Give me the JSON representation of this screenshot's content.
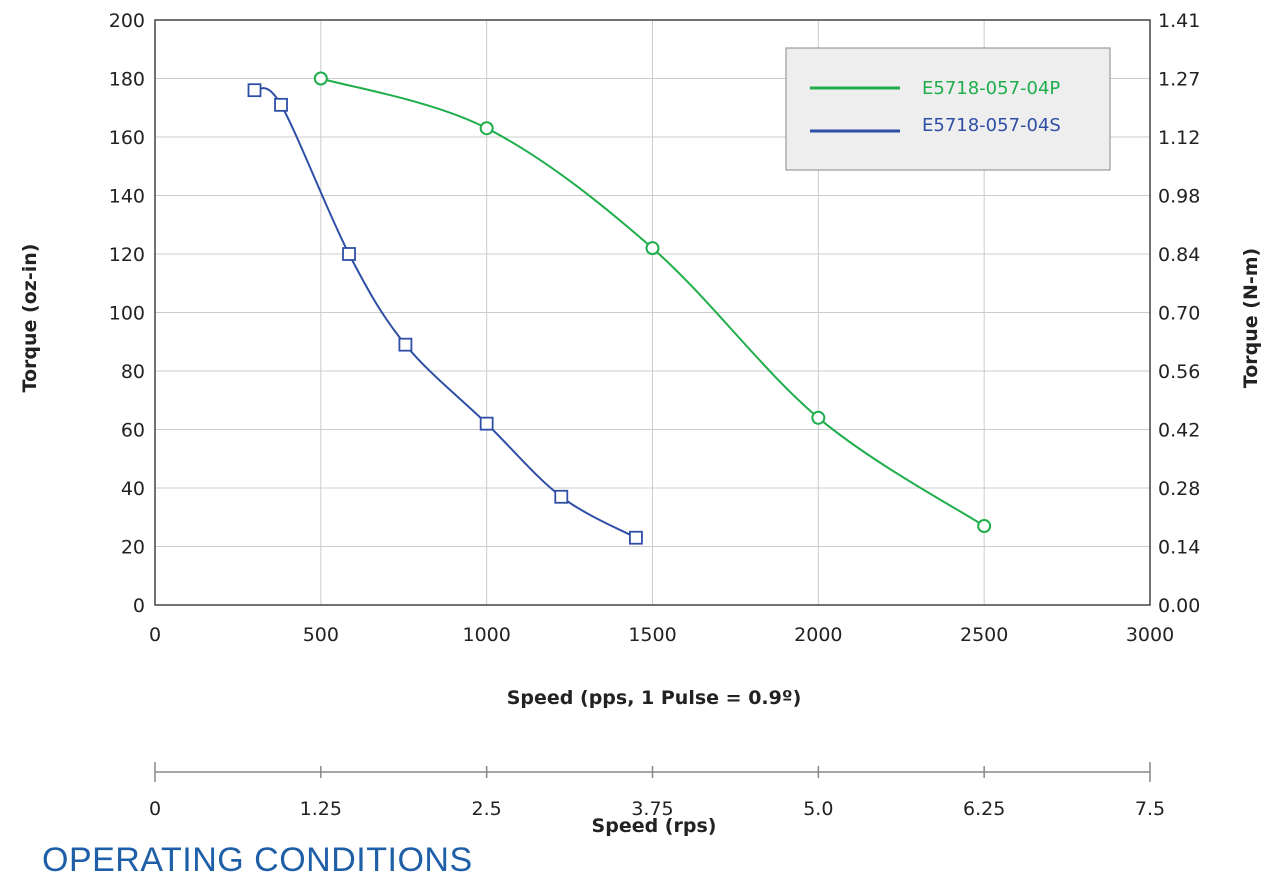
{
  "chart_data": {
    "type": "line",
    "title": "",
    "xlabel": "Speed (pps, 1 Pulse = 0.9º)",
    "ylabel_left": "Torque (oz-in)",
    "ylabel_right": "Torque (N-m)",
    "xlim": [
      0,
      3000
    ],
    "ylim": [
      0,
      200
    ],
    "x_ticks": [
      "0",
      "500",
      "1000",
      "1500",
      "2000",
      "2500",
      "3000"
    ],
    "y_ticks_left": [
      "0",
      "20",
      "40",
      "60",
      "80",
      "100",
      "120",
      "140",
      "160",
      "180",
      "200"
    ],
    "y_ticks_right": [
      "0.00",
      "0.14",
      "0.28",
      "0.42",
      "0.56",
      "0.70",
      "0.84",
      "0.98",
      "1.12",
      "1.27",
      "1.41"
    ],
    "grid": true,
    "legend_position": "top-right",
    "series": [
      {
        "name": "E5718-057-04P",
        "color": "#1fae4b",
        "marker": "circle",
        "x": [
          500,
          1000,
          1500,
          2000,
          2500
        ],
        "y": [
          180,
          163,
          122,
          64,
          27
        ]
      },
      {
        "name": "E5718-057-04S",
        "color": "#2f4fa6",
        "marker": "square",
        "x": [
          300,
          380,
          585,
          755,
          1000,
          1225,
          1450
        ],
        "y": [
          176,
          171,
          120,
          89,
          62,
          37,
          23
        ]
      }
    ],
    "secondary_x_axis": {
      "label": "Speed (rps)",
      "range": [
        0,
        7.5
      ],
      "ticks": [
        "0",
        "1.25",
        "2.5",
        "3.75",
        "5.0",
        "6.25",
        "7.5"
      ]
    }
  },
  "footer": {
    "heading": "OPERATING CONDITIONS"
  }
}
